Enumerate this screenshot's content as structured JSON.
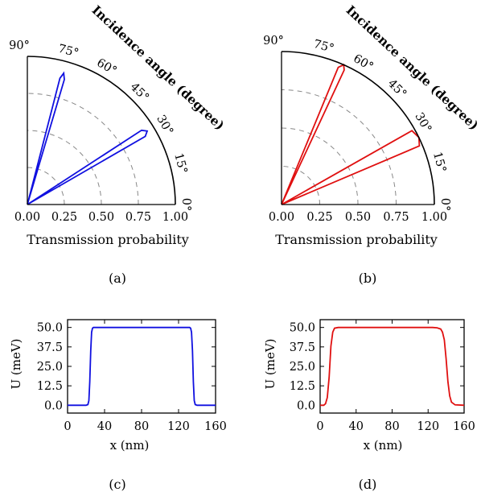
{
  "chart_data": [
    {
      "type": "polar",
      "panel": "a",
      "caption": "(a)",
      "xlabel": "Transmission probability",
      "angle_label": "Incidence angle (degree)",
      "r_ticks": [
        "0.00",
        "0.25",
        "0.50",
        "0.75",
        "1.00"
      ],
      "theta_ticks": [
        "0°",
        "15°",
        "30°",
        "45°",
        "60°",
        "75°",
        "90°"
      ],
      "rlim": [
        0,
        1
      ],
      "thetalim": [
        0,
        90
      ],
      "color": "#1010e0",
      "lobes": [
        {
          "theta": [
            0,
            30,
            31.5,
            33,
            0
          ],
          "r": [
            0,
            0.92,
            0.95,
            0.92,
            0
          ]
        },
        {
          "theta": [
            0,
            73.5,
            74.5,
            75.5,
            0
          ],
          "r": [
            0,
            0.88,
            0.92,
            0.88,
            0
          ]
        }
      ]
    },
    {
      "type": "polar",
      "panel": "b",
      "caption": "(b)",
      "xlabel": "Transmission probability",
      "angle_label": "Incidence angle (degree)",
      "r_ticks": [
        "0.00",
        "0.25",
        "0.50",
        "0.75",
        "1.00"
      ],
      "theta_ticks": [
        "0°",
        "15°",
        "30°",
        "45°",
        "60°",
        "75°",
        "90°"
      ],
      "rlim": [
        0,
        1
      ],
      "thetalim": [
        0,
        90
      ],
      "color": "#e01010",
      "lobes": [
        {
          "theta": [
            0,
            23,
            26,
            29.5,
            0
          ],
          "r": [
            0,
            0.98,
            1.0,
            0.98,
            0
          ]
        },
        {
          "theta": [
            0,
            65,
            66,
            67.5,
            0
          ],
          "r": [
            0,
            0.97,
            1.0,
            0.97,
            0
          ]
        }
      ]
    },
    {
      "type": "line",
      "panel": "c",
      "caption": "(c)",
      "xlabel": "x (nm)",
      "ylabel": "U (meV)",
      "x_ticks": [
        "0",
        "40",
        "80",
        "120",
        "160"
      ],
      "y_ticks": [
        "0.0",
        "12.5",
        "25.0",
        "37.5",
        "50.0"
      ],
      "xlim": [
        0,
        160
      ],
      "ylim": [
        -5,
        55
      ],
      "color": "#1010e0",
      "x": [
        0,
        20,
        22,
        23,
        24,
        25,
        26,
        27,
        28,
        30,
        130,
        132,
        133,
        134,
        135,
        136,
        137,
        138,
        140,
        160
      ],
      "y": [
        0,
        0,
        0.5,
        3,
        15,
        35,
        47,
        49.5,
        50,
        50,
        50,
        50,
        49.5,
        47,
        35,
        15,
        3,
        0.5,
        0,
        0
      ]
    },
    {
      "type": "line",
      "panel": "d",
      "caption": "(d)",
      "xlabel": "x (nm)",
      "ylabel": "U (meV)",
      "x_ticks": [
        "0",
        "40",
        "80",
        "120",
        "160"
      ],
      "y_ticks": [
        "0.0",
        "12.5",
        "25.0",
        "37.5",
        "50.0"
      ],
      "xlim": [
        0,
        160
      ],
      "ylim": [
        -5,
        55
      ],
      "color": "#e01010",
      "x": [
        0,
        4,
        6,
        8,
        10,
        12,
        14,
        16,
        20,
        125,
        130,
        134,
        136,
        138,
        140,
        142,
        144,
        146,
        150,
        160
      ],
      "y": [
        0,
        0,
        1,
        5,
        18,
        38,
        47,
        49.5,
        50,
        50,
        49.8,
        49,
        47,
        42,
        30,
        15,
        6,
        2,
        0.3,
        0
      ]
    }
  ]
}
